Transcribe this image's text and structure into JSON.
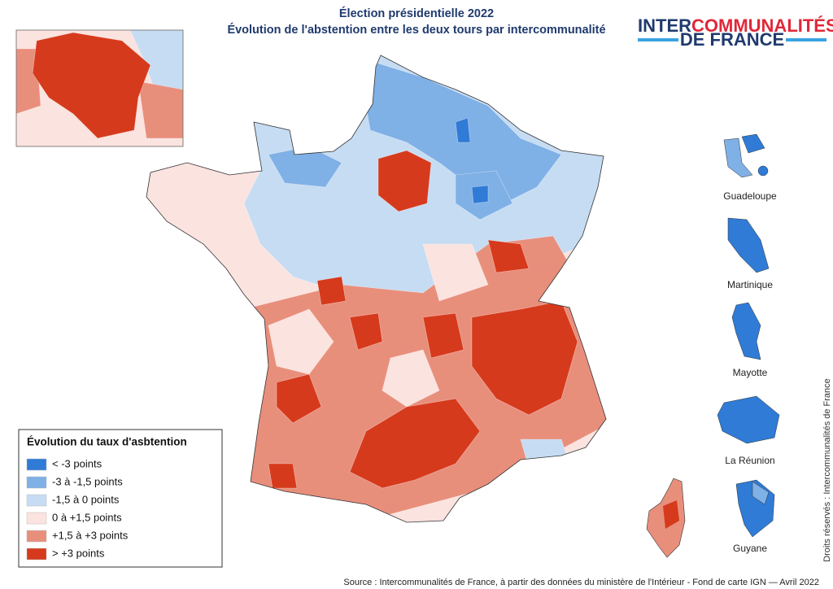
{
  "header": {
    "title": "Élection présidentielle 2022",
    "subtitle": "Évolution de l'abstention entre les deux tours par intercommunalité"
  },
  "logo": {
    "line1a": "INTER",
    "line1b": "COMMUNALITÉS",
    "line2": "DE FRANCE"
  },
  "legend": {
    "title": "Évolution du taux d'asbtention",
    "items": [
      {
        "label": "< -3 points",
        "color": "#2f7bd6"
      },
      {
        "label": "-3 à -1,5 points",
        "color": "#7fb0e6"
      },
      {
        "label": "-1,5 à 0 points",
        "color": "#c6dcf3"
      },
      {
        "label": "0 à +1,5 points",
        "color": "#fbe3df"
      },
      {
        "label": "+1,5 à +3 points",
        "color": "#e88f7c"
      },
      {
        "label": "> +3 points",
        "color": "#d63a1c"
      }
    ]
  },
  "overseas": [
    "Guadeloupe",
    "Martinique",
    "Mayotte",
    "La Réunion",
    "Guyane"
  ],
  "source": "Source : Intercommunalités de France,  à partir des données du ministère de l'Intérieur - Fond de carte IGN  — Avril 2022",
  "rights": "Droits réservés : Intercommunalités de France"
}
